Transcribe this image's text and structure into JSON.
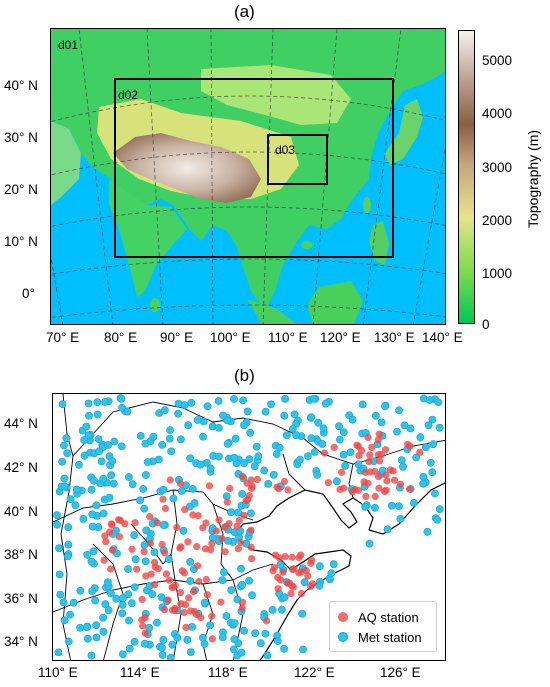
{
  "panel_a": {
    "label": "(a)",
    "domains": [
      "d01",
      "d02",
      "d03"
    ],
    "x_ticks": [
      "70° E",
      "80° E",
      "90° E",
      "100° E",
      "110° E",
      "120° E",
      "130° E",
      "140° E"
    ],
    "y_ticks": [
      "40° N",
      "30° N",
      "20° N",
      "10° N",
      "0°"
    ],
    "colorbar": {
      "title": "Topography (m)",
      "ticks": [
        "5000",
        "4000",
        "3000",
        "2000",
        "1000",
        "0"
      ],
      "range": [
        0,
        5500
      ]
    }
  },
  "panel_b": {
    "label": "(b)",
    "x_ticks": [
      "110° E",
      "114° E",
      "118° E",
      "122° E",
      "126° E"
    ],
    "y_ticks": [
      "44° N",
      "42° N",
      "40° N",
      "38° N",
      "36° N",
      "34° N"
    ],
    "legend": [
      {
        "label": "AQ station",
        "color": "#f04848"
      },
      {
        "label": "Met station",
        "color": "#2ec4ea"
      }
    ]
  },
  "colors": {
    "ocean": "#00bfff",
    "lowland": "#2fc96a",
    "plateau": "#8b6a55",
    "aq_marker": "#f04848",
    "met_marker": "#2ec4ea"
  }
}
